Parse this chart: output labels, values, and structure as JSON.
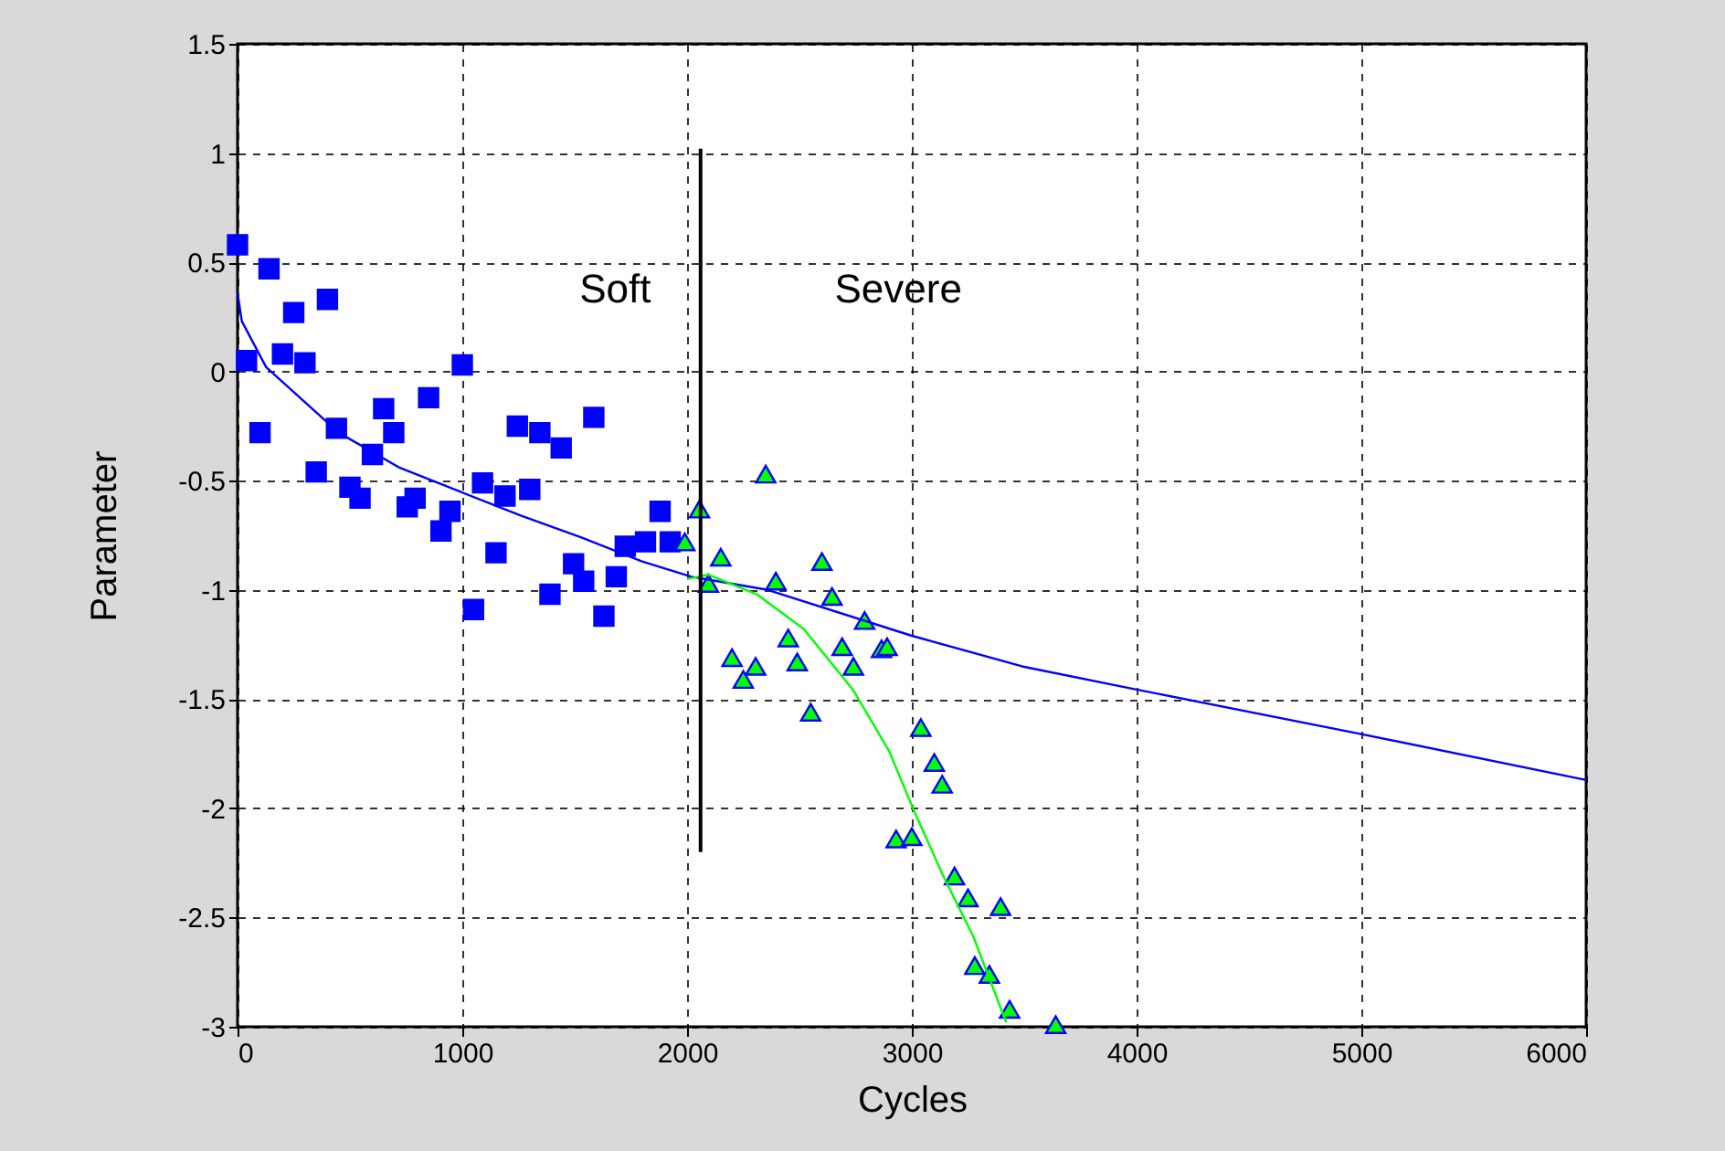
{
  "chart_data": {
    "type": "scatter",
    "xlabel": "Cycles",
    "ylabel": "Parameter",
    "xlim": [
      0,
      6000
    ],
    "ylim": [
      -3,
      1.5
    ],
    "xticks": [
      0,
      1000,
      2000,
      3000,
      4000,
      5000,
      6000
    ],
    "yticks": [
      -3,
      -2.5,
      -2,
      -1.5,
      -1,
      -0.5,
      0,
      0.5,
      1,
      1.5
    ],
    "grid": true,
    "annotations": [
      "Soft",
      "Severe"
    ],
    "series": [
      {
        "marker": "square",
        "color": "#0000ff",
        "x": [
          0,
          140,
          250,
          400,
          40,
          200,
          300,
          100,
          440,
          650,
          850,
          1000,
          695,
          600,
          350,
          500,
          545,
          755,
          790,
          905,
          945,
          1245,
          1345,
          1440,
          1585,
          1090,
          1190,
          1300,
          1150,
          1050,
          1390,
          1495,
          1540,
          1685,
          1630,
          1880,
          1725,
          1815,
          1925
        ],
        "values": [
          0.58,
          0.47,
          0.27,
          0.33,
          0.05,
          0.08,
          0.04,
          -0.28,
          -0.26,
          -0.17,
          -0.12,
          0.03,
          -0.28,
          -0.38,
          -0.46,
          -0.53,
          -0.58,
          -0.62,
          -0.58,
          -0.73,
          -0.64,
          -0.25,
          -0.28,
          -0.35,
          -0.21,
          -0.51,
          -0.57,
          -0.54,
          -0.83,
          -1.09,
          -1.02,
          -0.88,
          -0.96,
          -0.94,
          -1.12,
          -0.64,
          -0.8,
          -0.78,
          -0.78
        ]
      },
      {
        "marker": "triangle",
        "color": "#00ff00",
        "x": [
          2350,
          2055,
          1990,
          2150,
          2095,
          2600,
          2395,
          2645,
          2790,
          2450,
          2690,
          2865,
          2890,
          2200,
          2305,
          2250,
          2490,
          2740,
          2550,
          3040,
          3100,
          3135,
          2930,
          3000,
          3190,
          3250,
          3395,
          3280,
          3345,
          3435,
          3640
        ],
        "values": [
          -0.47,
          -0.63,
          -0.78,
          -0.85,
          -0.97,
          -0.87,
          -0.96,
          -1.03,
          -1.14,
          -1.22,
          -1.26,
          -1.27,
          -1.26,
          -1.31,
          -1.35,
          -1.41,
          -1.33,
          -1.35,
          -1.56,
          -1.63,
          -1.79,
          -1.89,
          -2.14,
          -2.13,
          -2.31,
          -2.41,
          -2.45,
          -2.72,
          -2.76,
          -2.92,
          -2.99
        ]
      },
      {
        "type": "line",
        "color": "#0000ff",
        "x": [
          0,
          19,
          127,
          450,
          720,
          990,
          1260,
          1530,
          1800,
          2020,
          2360,
          3000,
          3490,
          3970,
          5000,
          6000
        ],
        "values": [
          0.36,
          0.23,
          0.02,
          -0.28,
          -0.44,
          -0.55,
          -0.66,
          -0.76,
          -0.87,
          -0.94,
          -1.0,
          -1.21,
          -1.35,
          -1.45,
          -1.66,
          -1.87
        ]
      },
      {
        "type": "line",
        "color": "#00ff00",
        "x": [
          2000,
          2095,
          2310,
          2520,
          2740,
          2900,
          3005,
          3140,
          3275,
          3420
        ],
        "values": [
          -0.95,
          -0.93,
          -1.02,
          -1.18,
          -1.46,
          -1.74,
          -2.0,
          -2.31,
          -2.59,
          -2.98
        ]
      },
      {
        "type": "line",
        "color": "#000000",
        "x": [
          2060,
          2060
        ],
        "values": [
          1.02,
          -2.2
        ]
      }
    ]
  }
}
